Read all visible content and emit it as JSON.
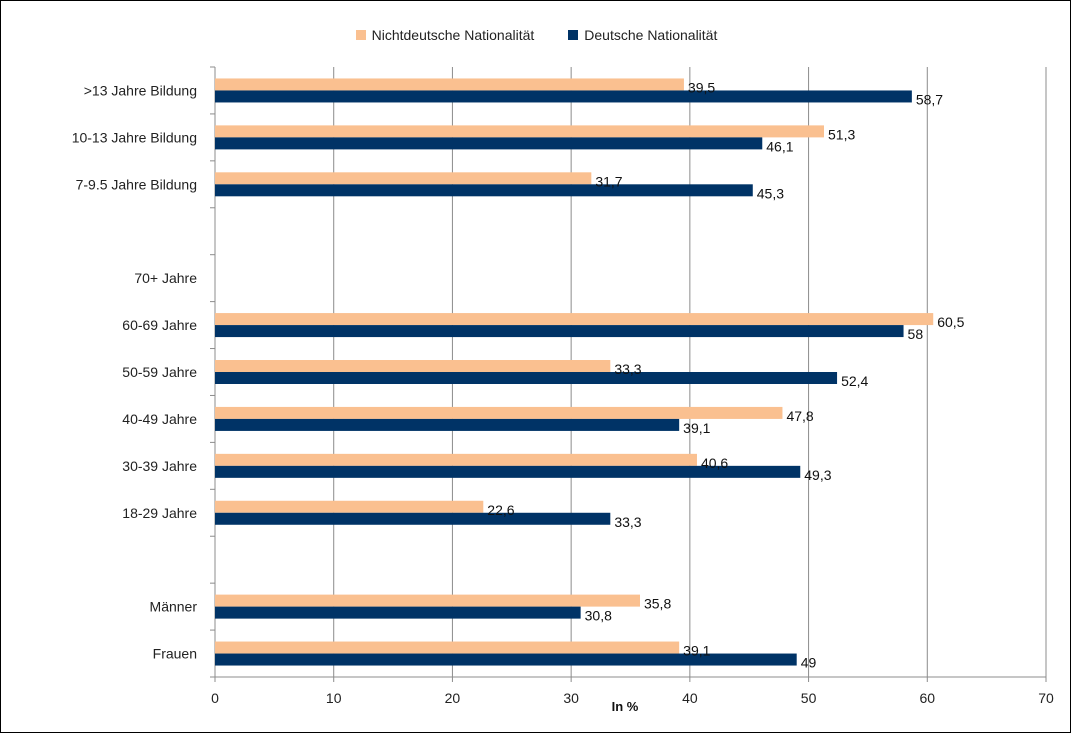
{
  "chart_data": {
    "type": "bar",
    "orientation": "horizontal",
    "categories": [
      ">13 Jahre Bildung",
      "10-13 Jahre Bildung",
      "7-9.5 Jahre Bildung",
      "",
      "70+ Jahre",
      "60-69 Jahre",
      "50-59 Jahre",
      "40-49 Jahre",
      "30-39 Jahre",
      "18-29 Jahre",
      "",
      "Männer",
      "Frauen"
    ],
    "series": [
      {
        "name": "Nichtdeutsche Nationalität",
        "color": "#FAC090",
        "values": [
          39.5,
          51.3,
          31.7,
          null,
          null,
          60.5,
          33.3,
          47.8,
          40.6,
          22.6,
          null,
          35.8,
          39.1
        ],
        "labels": [
          "39,5",
          "51,3",
          "31,7",
          "",
          "",
          "60,5",
          "33,3",
          "47,8",
          "40,6",
          "22,6",
          "",
          "35,8",
          "39,1"
        ]
      },
      {
        "name": "Deutsche Nationalität",
        "color": "#003366",
        "values": [
          58.7,
          46.1,
          45.3,
          null,
          null,
          58,
          52.4,
          39.1,
          49.3,
          33.3,
          null,
          30.8,
          49
        ],
        "labels": [
          "58,7",
          "46,1",
          "45,3",
          "",
          "",
          "58",
          "52,4",
          "39,1",
          "49,3",
          "33,3",
          "",
          "30,8",
          "49"
        ]
      }
    ],
    "xlabel": "In %",
    "xlim": [
      0,
      70
    ],
    "xticks": [
      "0",
      "10",
      "20",
      "30",
      "40",
      "50",
      "60",
      "70"
    ],
    "grid": "vertical",
    "legend_position": "top"
  },
  "legend": {
    "items": [
      {
        "label": "Nichtdeutsche Nationalität",
        "color": "#FAC090"
      },
      {
        "label": "Deutsche Nationalität",
        "color": "#003366"
      }
    ]
  }
}
